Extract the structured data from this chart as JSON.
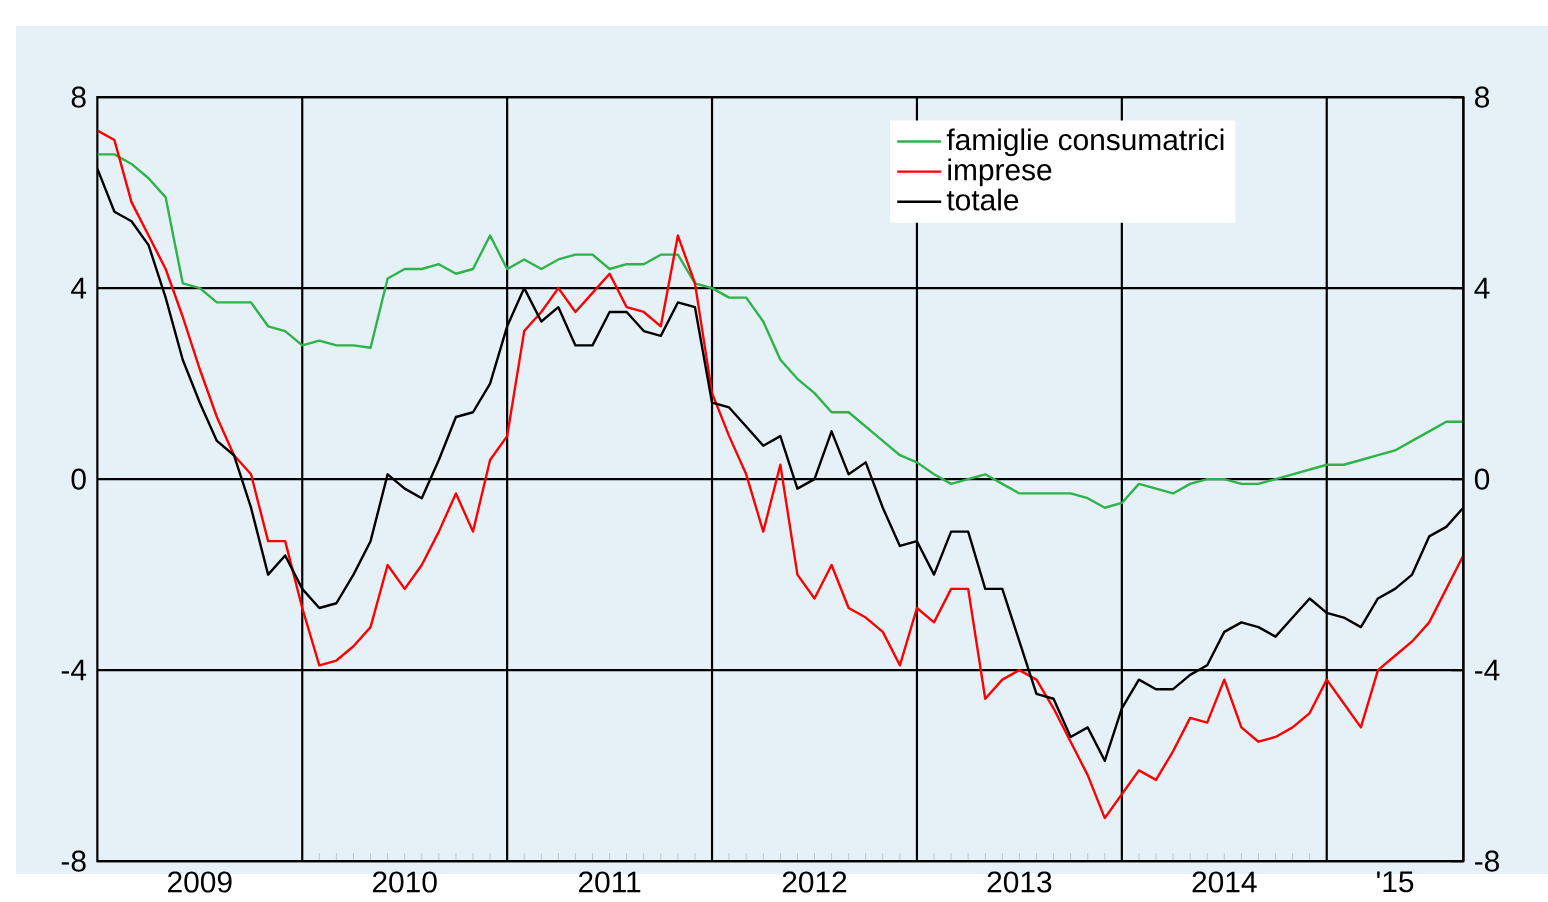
{
  "chart_data": {
    "type": "line",
    "x": [
      "2009-01",
      "2009-02",
      "2009-03",
      "2009-04",
      "2009-05",
      "2009-06",
      "2009-07",
      "2009-08",
      "2009-09",
      "2009-10",
      "2009-11",
      "2009-12",
      "2010-01",
      "2010-02",
      "2010-03",
      "2010-04",
      "2010-05",
      "2010-06",
      "2010-07",
      "2010-08",
      "2010-09",
      "2010-10",
      "2010-11",
      "2010-12",
      "2011-01",
      "2011-02",
      "2011-03",
      "2011-04",
      "2011-05",
      "2011-06",
      "2011-07",
      "2011-08",
      "2011-09",
      "2011-10",
      "2011-11",
      "2011-12",
      "2012-01",
      "2012-02",
      "2012-03",
      "2012-04",
      "2012-05",
      "2012-06",
      "2012-07",
      "2012-08",
      "2012-09",
      "2012-10",
      "2012-11",
      "2012-12",
      "2013-01",
      "2013-02",
      "2013-03",
      "2013-04",
      "2013-05",
      "2013-06",
      "2013-07",
      "2013-08",
      "2013-09",
      "2013-10",
      "2013-11",
      "2013-12",
      "2014-01",
      "2014-02",
      "2014-03",
      "2014-04",
      "2014-05",
      "2014-06",
      "2014-07",
      "2014-08",
      "2014-09",
      "2014-10",
      "2014-11",
      "2014-12",
      "2015-01",
      "2015-02",
      "2015-03",
      "2015-04",
      "2015-05",
      "2015-06",
      "2015-07",
      "2015-08",
      "2015-09"
    ],
    "series": [
      {
        "name": "famiglie consumatrici",
        "color": "#2db34a",
        "values": [
          6.8,
          6.8,
          6.6,
          6.3,
          5.9,
          4.1,
          4.0,
          3.7,
          3.7,
          3.7,
          3.2,
          3.1,
          2.8,
          2.9,
          2.8,
          2.8,
          2.75,
          4.2,
          4.4,
          4.4,
          4.5,
          4.3,
          4.4,
          5.1,
          4.4,
          4.6,
          4.4,
          4.6,
          4.7,
          4.7,
          4.4,
          4.5,
          4.5,
          4.7,
          4.7,
          4.1,
          4.0,
          3.8,
          3.8,
          3.3,
          2.5,
          2.1,
          1.8,
          1.4,
          1.4,
          1.1,
          0.8,
          0.5,
          0.35,
          0.1,
          -0.1,
          0,
          0.1,
          -0.1,
          -0.3,
          -0.3,
          -0.3,
          -0.3,
          -0.4,
          -0.6,
          -0.5,
          -0.1,
          -0.2,
          -0.3,
          -0.1,
          0,
          0,
          -0.1,
          -0.1,
          0,
          0.1,
          0.2,
          0.3,
          0.3,
          0.4,
          0.5,
          0.6,
          0.8,
          1.0,
          1.2,
          1.2
        ]
      },
      {
        "name": "imprese",
        "color": "#ff0000",
        "values": [
          7.3,
          7.1,
          5.8,
          5.1,
          4.4,
          3.4,
          2.3,
          1.3,
          0.5,
          0.1,
          -1.3,
          -1.3,
          -2.7,
          -3.9,
          -3.8,
          -3.5,
          -3.1,
          -1.8,
          -2.3,
          -1.8,
          -1.1,
          -0.3,
          -1.1,
          0.4,
          0.9,
          3.1,
          3.5,
          4.0,
          3.5,
          3.9,
          4.3,
          3.6,
          3.5,
          3.2,
          5.1,
          4.1,
          1.8,
          0.9,
          0.1,
          -1.1,
          0.3,
          -2.0,
          -2.5,
          -1.8,
          -2.7,
          -2.9,
          -3.2,
          -3.9,
          -2.7,
          -3.0,
          -2.3,
          -2.3,
          -4.6,
          -4.2,
          -4.0,
          -4.2,
          -4.8,
          -5.5,
          -6.2,
          -7.1,
          -6.6,
          -6.1,
          -6.3,
          -5.7,
          -5.0,
          -5.1,
          -4.2,
          -5.2,
          -5.5,
          -5.4,
          -5.2,
          -4.9,
          -4.2,
          -4.7,
          -5.2,
          -4.0,
          -3.7,
          -3.4,
          -3.0,
          -2.3,
          -1.6
        ]
      },
      {
        "name": "totale",
        "color": "#000000",
        "values": [
          6.5,
          5.6,
          5.4,
          4.9,
          3.8,
          2.5,
          1.6,
          0.8,
          0.5,
          -0.6,
          -2.0,
          -1.6,
          -2.3,
          -2.7,
          -2.6,
          -2.0,
          -1.3,
          0.1,
          -0.2,
          -0.4,
          0.4,
          1.3,
          1.4,
          2.0,
          3.2,
          4.0,
          3.3,
          3.6,
          2.8,
          2.8,
          3.5,
          3.5,
          3.1,
          3.0,
          3.7,
          3.6,
          1.6,
          1.5,
          1.1,
          0.7,
          0.9,
          -0.2,
          0,
          1.0,
          0.1,
          0.35,
          -0.6,
          -1.4,
          -1.3,
          -2.0,
          -1.1,
          -1.1,
          -2.3,
          -2.3,
          -3.4,
          -4.5,
          -4.6,
          -5.4,
          -5.2,
          -5.9,
          -4.8,
          -4.2,
          -4.4,
          -4.4,
          -4.1,
          -3.9,
          -3.2,
          -3.0,
          -3.1,
          -3.3,
          -2.9,
          -2.5,
          -2.8,
          -2.9,
          -3.1,
          -2.5,
          -2.3,
          -2.0,
          -1.2,
          -1.0,
          -0.6
        ]
      }
    ],
    "xlim": [
      "2009-01",
      "2015-09"
    ],
    "xticks": [
      {
        "value": "2009-07",
        "label": "2009"
      },
      {
        "value": "2010-01",
        "label": null
      },
      {
        "value": "2010-07",
        "label": "2010"
      },
      {
        "value": "2011-01",
        "label": null
      },
      {
        "value": "2011-07",
        "label": "2011"
      },
      {
        "value": "2012-01",
        "label": null
      },
      {
        "value": "2012-07",
        "label": "2012"
      },
      {
        "value": "2013-01",
        "label": null
      },
      {
        "value": "2013-07",
        "label": "2013"
      },
      {
        "value": "2014-01",
        "label": null
      },
      {
        "value": "2014-07",
        "label": "2014"
      },
      {
        "value": "2015-01",
        "label": null
      },
      {
        "value": "2015-05",
        "label": "'15"
      }
    ],
    "ylim": [
      -8,
      8
    ],
    "yticks": [
      -8,
      -4,
      0,
      4,
      8
    ],
    "y2lim": [
      -8,
      8
    ],
    "y2ticks": [
      -8,
      -4,
      0,
      4,
      8
    ],
    "grid": true,
    "legend": "top right"
  }
}
